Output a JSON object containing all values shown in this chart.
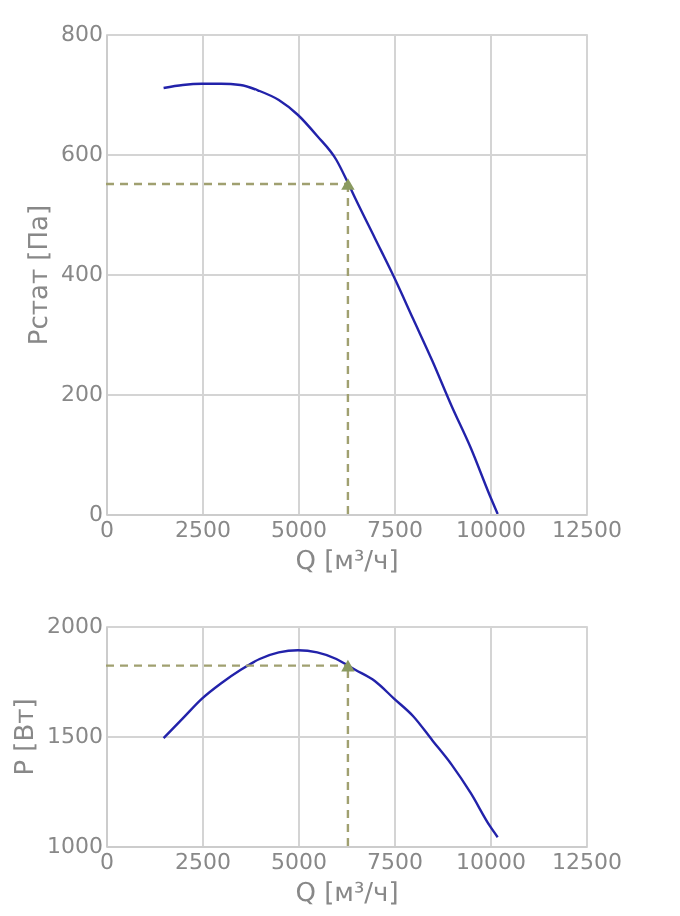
{
  "chart_data": [
    {
      "type": "line",
      "xlabel": "Q [м³/ч]",
      "ylabel": "Pстат [Па]",
      "xlim": [
        0,
        12500
      ],
      "ylim": [
        0,
        800
      ],
      "grid": true,
      "xticks": [
        0,
        2500,
        5000,
        7500,
        10000,
        12500
      ],
      "yticks": [
        0,
        200,
        400,
        600,
        800
      ],
      "series": [
        {
          "color": "#2222aa",
          "line_style": "solid",
          "x": [
            1500,
            2000,
            2500,
            3000,
            3500,
            4000,
            4500,
            5000,
            5500,
            6000,
            6300,
            6500,
            7000,
            7500,
            8000,
            8500,
            9000,
            9500,
            10000,
            10200
          ],
          "values": [
            710,
            715,
            717,
            717,
            715,
            705,
            690,
            665,
            630,
            590,
            552,
            525,
            460,
            395,
            325,
            255,
            180,
            110,
            30,
            0
          ]
        },
        {
          "color": "#a0a070",
          "line_style": "dashed",
          "x": [
            0,
            6300
          ],
          "values": [
            550,
            550
          ]
        },
        {
          "color": "#a0a070",
          "line_style": "dashed",
          "x": [
            6300,
            6300
          ],
          "values": [
            0,
            550
          ]
        },
        {
          "type": "scatter",
          "color": "#8a9a60",
          "marker": "triangle",
          "x": [
            6300
          ],
          "values": [
            550
          ]
        }
      ]
    },
    {
      "type": "line",
      "xlabel": "Q [м³/ч]",
      "ylabel": "P [Вт]",
      "xlim": [
        0,
        12500
      ],
      "ylim": [
        1000,
        2000
      ],
      "grid": true,
      "xticks": [
        0,
        2500,
        5000,
        7500,
        10000,
        12500
      ],
      "yticks": [
        1000,
        1500,
        2000
      ],
      "series": [
        {
          "color": "#2222aa",
          "line_style": "solid",
          "x": [
            1500,
            2000,
            2500,
            3000,
            3500,
            4000,
            4500,
            5000,
            5500,
            6000,
            6300,
            6500,
            7000,
            7500,
            8000,
            8500,
            9000,
            9500,
            10000,
            10200
          ],
          "values": [
            1490,
            1580,
            1670,
            1740,
            1800,
            1850,
            1880,
            1890,
            1880,
            1850,
            1820,
            1800,
            1750,
            1670,
            1590,
            1480,
            1370,
            1240,
            1090,
            1040
          ]
        },
        {
          "color": "#a0a070",
          "line_style": "dashed",
          "x": [
            0,
            6300
          ],
          "values": [
            1820,
            1820
          ]
        },
        {
          "color": "#a0a070",
          "line_style": "dashed",
          "x": [
            6300,
            6300
          ],
          "values": [
            1000,
            1820
          ]
        },
        {
          "type": "scatter",
          "color": "#8a9a60",
          "marker": "triangle",
          "x": [
            6300
          ],
          "values": [
            1820
          ]
        }
      ]
    }
  ]
}
